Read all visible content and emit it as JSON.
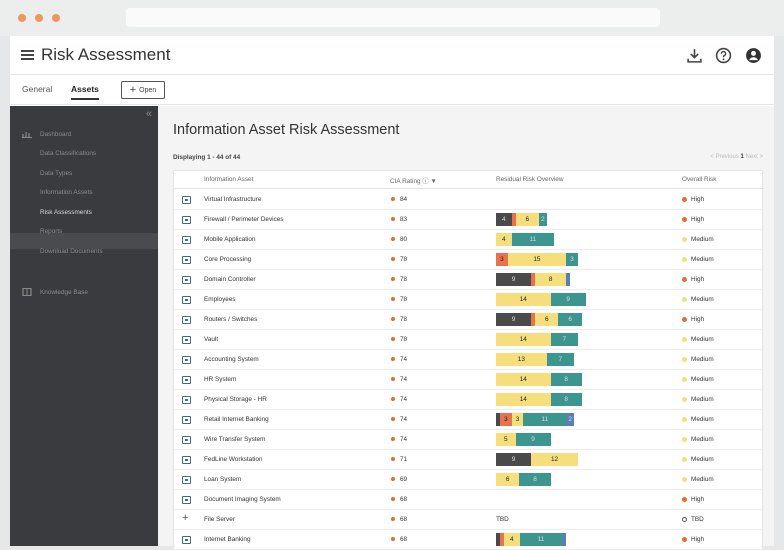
{
  "colors": {
    "high": "#e36e2e",
    "medium": "#f5de7b",
    "tbd": "#ffffff",
    "seg_dark": "#4a4a4a",
    "seg_orange": "#e8724d",
    "seg_yellow": "#f5de7b",
    "seg_teal": "#3d958f",
    "seg_blue": "#5a7fb5"
  },
  "header": {
    "title": "Risk Assessment",
    "icons": [
      "download-icon",
      "help-icon",
      "account-icon"
    ]
  },
  "tabs": {
    "general": "General",
    "assets": "Assets",
    "open": "Open"
  },
  "sidebar": {
    "items": [
      {
        "label": "Dashboard",
        "icon": "dashboard-icon"
      },
      {
        "label": "Data Classifications"
      },
      {
        "label": "Data Types"
      },
      {
        "label": "Information Assets"
      },
      {
        "label": "Risk Assessments"
      },
      {
        "label": "Reports"
      },
      {
        "label": "Download Documents"
      },
      {
        "label": "Knowledge Base",
        "icon": "book-icon"
      }
    ]
  },
  "main": {
    "title": "Information Asset Risk Assessment",
    "displaying": "Displaying 1 - 44 of 44",
    "pager": {
      "prev": "< Previous",
      "page": "1",
      "next": "Next >"
    },
    "columns": {
      "asset": "Information Asset",
      "cia": "CIA Rating",
      "residual": "Residual Risk Overview",
      "overall": "Overall Risk"
    },
    "rows": [
      {
        "asset": "Virtual Infrastructure",
        "cia": "84",
        "risk": "High",
        "segments": []
      },
      {
        "asset": "Firewall / Perimeter Devices",
        "cia": "83",
        "risk": "High",
        "segments": [
          {
            "c": "dark",
            "v": "4"
          },
          {
            "c": "orange",
            "v": ""
          },
          {
            "c": "yellow",
            "v": "6"
          },
          {
            "c": "teal",
            "v": "2"
          }
        ]
      },
      {
        "asset": "Mobile Application",
        "cia": "80",
        "risk": "Medium",
        "segments": [
          {
            "c": "yellow",
            "v": "4"
          },
          {
            "c": "teal",
            "v": "11"
          }
        ]
      },
      {
        "asset": "Core Processing",
        "cia": "78",
        "risk": "Medium",
        "segments": [
          {
            "c": "orange",
            "v": "3"
          },
          {
            "c": "yellow",
            "v": "15"
          },
          {
            "c": "teal",
            "v": "3"
          }
        ]
      },
      {
        "asset": "Domain Controller",
        "cia": "78",
        "risk": "High",
        "segments": [
          {
            "c": "dark",
            "v": "9"
          },
          {
            "c": "orange",
            "v": ""
          },
          {
            "c": "yellow",
            "v": "8"
          },
          {
            "c": "blue",
            "v": ""
          }
        ]
      },
      {
        "asset": "Employees",
        "cia": "78",
        "risk": "Medium",
        "segments": [
          {
            "c": "yellow",
            "v": "14"
          },
          {
            "c": "teal",
            "v": "9"
          }
        ]
      },
      {
        "asset": "Routers / Switches",
        "cia": "78",
        "risk": "High",
        "segments": [
          {
            "c": "dark",
            "v": "9"
          },
          {
            "c": "orange",
            "v": ""
          },
          {
            "c": "yellow",
            "v": "6"
          },
          {
            "c": "teal",
            "v": "6"
          }
        ]
      },
      {
        "asset": "Vault",
        "cia": "78",
        "risk": "Medium",
        "segments": [
          {
            "c": "yellow",
            "v": "14"
          },
          {
            "c": "teal",
            "v": "7"
          }
        ]
      },
      {
        "asset": "Accounting System",
        "cia": "74",
        "risk": "Medium",
        "segments": [
          {
            "c": "yellow",
            "v": "13"
          },
          {
            "c": "teal",
            "v": "7"
          }
        ]
      },
      {
        "asset": "HR System",
        "cia": "74",
        "risk": "Medium",
        "segments": [
          {
            "c": "yellow",
            "v": "14"
          },
          {
            "c": "teal",
            "v": "8"
          }
        ]
      },
      {
        "asset": "Physical Storage - HR",
        "cia": "74",
        "risk": "Medium",
        "segments": [
          {
            "c": "yellow",
            "v": "14"
          },
          {
            "c": "teal",
            "v": "8"
          }
        ]
      },
      {
        "asset": "Retail Internet Banking",
        "cia": "74",
        "risk": "Medium",
        "segments": [
          {
            "c": "dark",
            "v": ""
          },
          {
            "c": "orange",
            "v": "3"
          },
          {
            "c": "yellow",
            "v": "3"
          },
          {
            "c": "teal",
            "v": "11"
          },
          {
            "c": "blue",
            "v": "2"
          }
        ]
      },
      {
        "asset": "Wire Transfer System",
        "cia": "74",
        "risk": "Medium",
        "segments": [
          {
            "c": "yellow",
            "v": "5"
          },
          {
            "c": "teal",
            "v": "9"
          }
        ]
      },
      {
        "asset": "FedLine Workstation",
        "cia": "71",
        "risk": "Medium",
        "segments": [
          {
            "c": "dark",
            "v": "9"
          },
          {
            "c": "yellow",
            "v": "12"
          }
        ]
      },
      {
        "asset": "Loan System",
        "cia": "69",
        "risk": "Medium",
        "segments": [
          {
            "c": "yellow",
            "v": "6"
          },
          {
            "c": "teal",
            "v": "8"
          }
        ]
      },
      {
        "asset": "Document Imaging System",
        "cia": "68",
        "risk": "High",
        "segments": []
      },
      {
        "asset": "File Server",
        "cia": "68",
        "risk": "TBD",
        "tbd": "TBD",
        "plus": true,
        "segments": []
      },
      {
        "asset": "Internet Banking",
        "cia": "68",
        "risk": "High",
        "segments": [
          {
            "c": "dark",
            "v": ""
          },
          {
            "c": "orange",
            "v": ""
          },
          {
            "c": "yellow",
            "v": "4"
          },
          {
            "c": "teal",
            "v": "11"
          },
          {
            "c": "blue",
            "v": ""
          }
        ]
      }
    ]
  }
}
